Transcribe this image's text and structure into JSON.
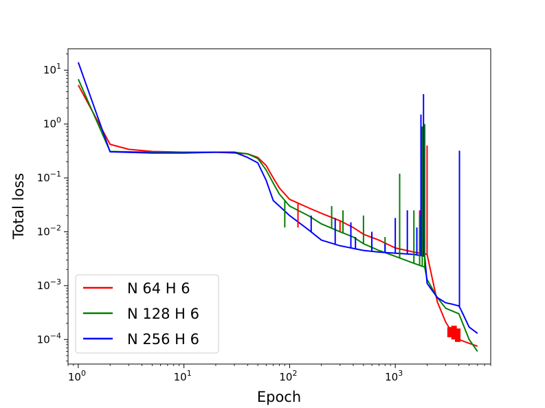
{
  "chart_data": {
    "type": "line",
    "title": "",
    "xlabel": "Epoch",
    "ylabel": "Total loss",
    "xscale": "log",
    "yscale": "log",
    "xlim": [
      0.8,
      8000
    ],
    "ylim": [
      3.5e-05,
      25
    ],
    "grid": false,
    "legend_position": "lower-left",
    "x_ticks": [
      {
        "base": "10",
        "exp": "0",
        "value": 1
      },
      {
        "base": "10",
        "exp": "1",
        "value": 10
      },
      {
        "base": "10",
        "exp": "2",
        "value": 100
      },
      {
        "base": "10",
        "exp": "3",
        "value": 1000
      }
    ],
    "y_ticks": [
      {
        "base": "10",
        "exp": "−4",
        "value": 0.0001
      },
      {
        "base": "10",
        "exp": "−3",
        "value": 0.001
      },
      {
        "base": "10",
        "exp": "−2",
        "value": 0.01
      },
      {
        "base": "10",
        "exp": "−1",
        "value": 0.1
      },
      {
        "base": "10",
        "exp": "0",
        "value": 1
      },
      {
        "base": "10",
        "exp": "1",
        "value": 10
      }
    ],
    "series": [
      {
        "name": "N 64 H 6",
        "color": "#ff0000",
        "points": [
          [
            1,
            5.3
          ],
          [
            2,
            0.42
          ],
          [
            3,
            0.34
          ],
          [
            5,
            0.31
          ],
          [
            10,
            0.3
          ],
          [
            20,
            0.3
          ],
          [
            30,
            0.29
          ],
          [
            40,
            0.28
          ],
          [
            50,
            0.24
          ],
          [
            60,
            0.17
          ],
          [
            70,
            0.1
          ],
          [
            80,
            0.065
          ],
          [
            100,
            0.04
          ],
          [
            150,
            0.028
          ],
          [
            200,
            0.022
          ],
          [
            300,
            0.016
          ],
          [
            400,
            0.012
          ],
          [
            500,
            0.009
          ],
          [
            700,
            0.007
          ],
          [
            1000,
            0.005
          ],
          [
            1500,
            0.0042
          ],
          [
            2000,
            0.0038
          ],
          [
            2500,
            0.0005
          ],
          [
            3000,
            0.00021
          ],
          [
            3500,
            0.00013
          ],
          [
            4000,
            0.0001
          ],
          [
            5000,
            8.5e-05
          ],
          [
            6000,
            7.5e-05
          ]
        ]
      },
      {
        "name": "N 128 H 6",
        "color": "#008000",
        "points": [
          [
            1,
            6.8
          ],
          [
            2,
            0.31
          ],
          [
            5,
            0.3
          ],
          [
            10,
            0.3
          ],
          [
            20,
            0.3
          ],
          [
            30,
            0.3
          ],
          [
            40,
            0.28
          ],
          [
            50,
            0.23
          ],
          [
            60,
            0.14
          ],
          [
            70,
            0.08
          ],
          [
            80,
            0.05
          ],
          [
            100,
            0.03
          ],
          [
            150,
            0.02
          ],
          [
            200,
            0.014
          ],
          [
            300,
            0.01
          ],
          [
            400,
            0.008
          ],
          [
            500,
            0.006
          ],
          [
            700,
            0.0045
          ],
          [
            1000,
            0.0035
          ],
          [
            1500,
            0.0026
          ],
          [
            1900,
            0.0022
          ],
          [
            2000,
            0.0013
          ],
          [
            2500,
            0.0006
          ],
          [
            3000,
            0.00038
          ],
          [
            4000,
            0.0003
          ],
          [
            5000,
            0.0001
          ],
          [
            6000,
            6e-05
          ]
        ]
      },
      {
        "name": "N 256 H 6",
        "color": "#0000ff",
        "points": [
          [
            1,
            14
          ],
          [
            2,
            0.305
          ],
          [
            5,
            0.29
          ],
          [
            10,
            0.29
          ],
          [
            20,
            0.3
          ],
          [
            30,
            0.3
          ],
          [
            40,
            0.24
          ],
          [
            50,
            0.19
          ],
          [
            60,
            0.09
          ],
          [
            70,
            0.038
          ],
          [
            80,
            0.03
          ],
          [
            100,
            0.02
          ],
          [
            150,
            0.011
          ],
          [
            200,
            0.007
          ],
          [
            300,
            0.0055
          ],
          [
            500,
            0.0045
          ],
          [
            700,
            0.0042
          ],
          [
            1000,
            0.004
          ],
          [
            1500,
            0.0038
          ],
          [
            1900,
            0.0035
          ],
          [
            2000,
            0.0011
          ],
          [
            2500,
            0.0006
          ],
          [
            3000,
            0.00048
          ],
          [
            3500,
            0.00045
          ],
          [
            4000,
            0.00042
          ],
          [
            4200,
            0.00035
          ],
          [
            5000,
            0.00017
          ],
          [
            6000,
            0.00013
          ]
        ]
      }
    ],
    "spikes": [
      {
        "series": 0,
        "peaks": [
          [
            120,
            0.012
          ],
          [
            300,
            0.01
          ],
          [
            1100,
            0.009
          ],
          [
            1700,
            0.025
          ],
          [
            2000,
            0.4
          ]
        ],
        "band": [
          [
            3300,
            0.00011,
            0.00017
          ],
          [
            3600,
            0.0001,
            0.00018
          ],
          [
            3900,
            9e-05,
            0.00016
          ]
        ]
      },
      {
        "series": 1,
        "peaks": [
          [
            90,
            0.012
          ],
          [
            250,
            0.03
          ],
          [
            320,
            0.025
          ],
          [
            500,
            0.02
          ],
          [
            800,
            0.008
          ],
          [
            1100,
            0.12
          ],
          [
            1500,
            0.025
          ],
          [
            1700,
            0.02
          ],
          [
            1800,
            0.9
          ],
          [
            1900,
            1.0
          ]
        ],
        "band": []
      },
      {
        "series": 2,
        "peaks": [
          [
            160,
            0.02
          ],
          [
            270,
            0.018
          ],
          [
            380,
            0.015
          ],
          [
            420,
            0.008
          ],
          [
            600,
            0.01
          ],
          [
            800,
            0.006
          ],
          [
            1000,
            0.018
          ],
          [
            1300,
            0.025
          ],
          [
            1600,
            0.012
          ],
          [
            1750,
            1.5
          ],
          [
            1850,
            3.6
          ],
          [
            4050,
            0.32
          ]
        ],
        "band": []
      }
    ]
  }
}
